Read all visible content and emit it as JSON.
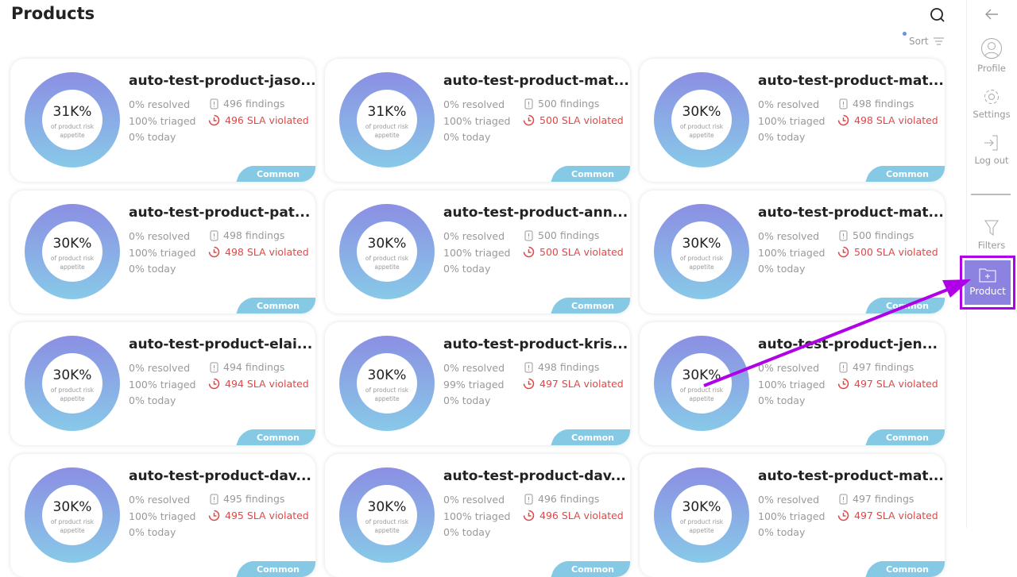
{
  "header": {
    "title": "Products",
    "sort_label": "Sort"
  },
  "sidebar": {
    "items": [
      {
        "label": "Profile"
      },
      {
        "label": "Settings"
      },
      {
        "label": "Log out"
      },
      {
        "label": "Filters"
      },
      {
        "label": "Product"
      }
    ]
  },
  "card_labels": {
    "subtitle": "of product risk appetite",
    "tag": "Common"
  },
  "products": [
    {
      "name": "auto-test-product-jaso...",
      "pct": "31K%",
      "resolved": "0% resolved",
      "triaged": "100% triaged",
      "today": "0% today",
      "findings": "496 findings",
      "sla": "496 SLA violated"
    },
    {
      "name": "auto-test-product-mat...",
      "pct": "31K%",
      "resolved": "0% resolved",
      "triaged": "100% triaged",
      "today": "0% today",
      "findings": "500 findings",
      "sla": "500 SLA violated"
    },
    {
      "name": "auto-test-product-mat...",
      "pct": "30K%",
      "resolved": "0% resolved",
      "triaged": "100% triaged",
      "today": "0% today",
      "findings": "498 findings",
      "sla": "498 SLA violated"
    },
    {
      "name": "auto-test-product-pat...",
      "pct": "30K%",
      "resolved": "0% resolved",
      "triaged": "100% triaged",
      "today": "0% today",
      "findings": "498 findings",
      "sla": "498 SLA violated"
    },
    {
      "name": "auto-test-product-ann...",
      "pct": "30K%",
      "resolved": "0% resolved",
      "triaged": "100% triaged",
      "today": "0% today",
      "findings": "500 findings",
      "sla": "500 SLA violated"
    },
    {
      "name": "auto-test-product-mat...",
      "pct": "30K%",
      "resolved": "0% resolved",
      "triaged": "100% triaged",
      "today": "0% today",
      "findings": "500 findings",
      "sla": "500 SLA violated"
    },
    {
      "name": "auto-test-product-elai...",
      "pct": "30K%",
      "resolved": "0% resolved",
      "triaged": "100% triaged",
      "today": "0% today",
      "findings": "494 findings",
      "sla": "494 SLA violated"
    },
    {
      "name": "auto-test-product-kris...",
      "pct": "30K%",
      "resolved": "0% resolved",
      "triaged": "99% triaged",
      "today": "0% today",
      "findings": "498 findings",
      "sla": "497 SLA violated"
    },
    {
      "name": "auto-test-product-jen...",
      "pct": "30K%",
      "resolved": "0% resolved",
      "triaged": "100% triaged",
      "today": "0% today",
      "findings": "497 findings",
      "sla": "497 SLA violated"
    },
    {
      "name": "auto-test-product-dav...",
      "pct": "30K%",
      "resolved": "0% resolved",
      "triaged": "100% triaged",
      "today": "0% today",
      "findings": "495 findings",
      "sla": "495 SLA violated"
    },
    {
      "name": "auto-test-product-dav...",
      "pct": "30K%",
      "resolved": "0% resolved",
      "triaged": "100% triaged",
      "today": "0% today",
      "findings": "496 findings",
      "sla": "496 SLA violated"
    },
    {
      "name": "auto-test-product-mat...",
      "pct": "30K%",
      "resolved": "0% resolved",
      "triaged": "100% triaged",
      "today": "0% today",
      "findings": "497 findings",
      "sla": "497 SLA violated"
    }
  ],
  "colors": {
    "accent": "#8c83e0",
    "sla_red": "#e04848",
    "tag": "#86c9e5",
    "annotation": "#b000e8"
  }
}
